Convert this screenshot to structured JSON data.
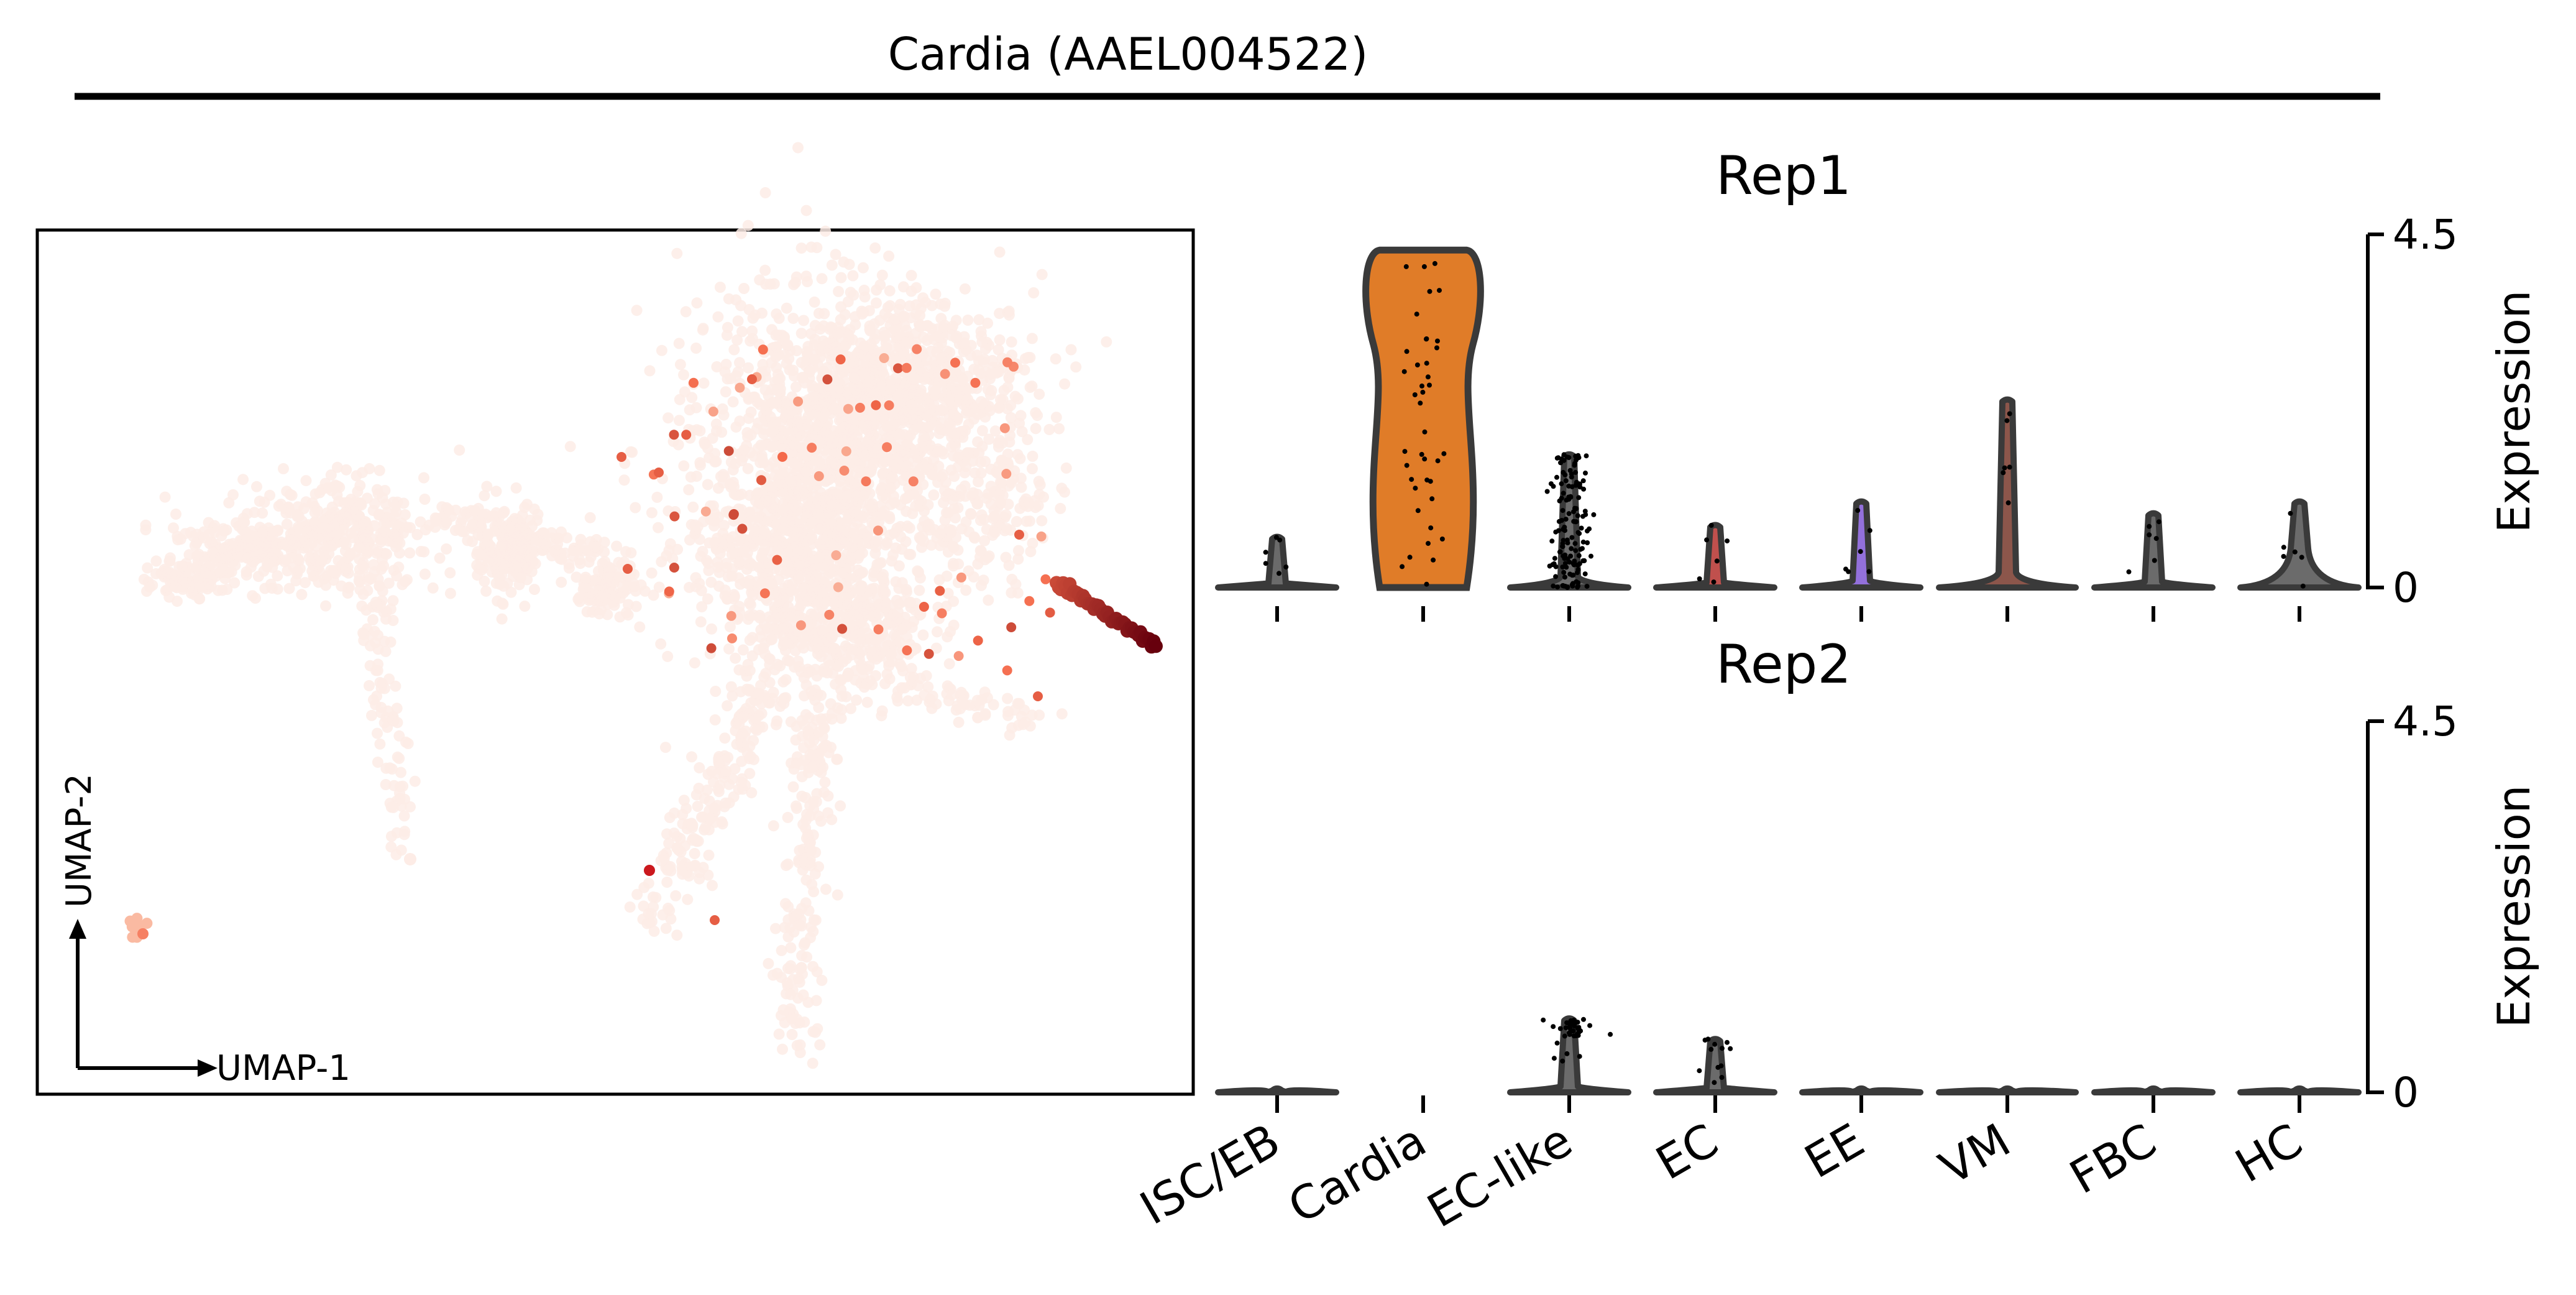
{
  "figure": {
    "title": "Cardia (AAEL004522)"
  },
  "chart_data": [
    {
      "type": "scatter",
      "kind": "umap",
      "xlabel": "UMAP-1",
      "ylabel": "UMAP-2",
      "colormap": "Reds",
      "colors": {
        "low": "#fdece6",
        "mid": "#f4694a",
        "high": "#67000d"
      },
      "axes_visible": false
    },
    {
      "type": "violin",
      "title": "Rep1",
      "ylabel": "Expression",
      "ylim": [
        0,
        4.5
      ],
      "yticks": [
        "0",
        "4.5"
      ],
      "categories": [
        "ISC/EB",
        "Cardia",
        "EC-like",
        "EC",
        "EE",
        "VM",
        "FBC",
        "HC"
      ],
      "max_values": [
        0.65,
        4.3,
        1.7,
        0.8,
        1.1,
        2.4,
        0.95,
        1.1
      ],
      "fill_colors": [
        "#6b6b6b",
        "#e07c28",
        "#6b6b6b",
        "#c0504d",
        "#9370db",
        "#8c564b",
        "#6b6b6b",
        "#6b6b6b"
      ]
    },
    {
      "type": "violin",
      "title": "Rep2",
      "ylabel": "Expression",
      "ylim": [
        0,
        4.5
      ],
      "yticks": [
        "0",
        "4.5"
      ],
      "categories": [
        "ISC/EB",
        "Cardia",
        "EC-like",
        "EC",
        "EE",
        "VM",
        "FBC",
        "HC"
      ],
      "max_values": [
        0.05,
        null,
        0.9,
        0.65,
        0.05,
        0.05,
        0.05,
        0.05
      ],
      "fill_colors": [
        "#6b6b6b",
        "#6b6b6b",
        "#6b6b6b",
        "#6b6b6b",
        "#6b6b6b",
        "#6b6b6b",
        "#6b6b6b",
        "#6b6b6b"
      ]
    }
  ]
}
